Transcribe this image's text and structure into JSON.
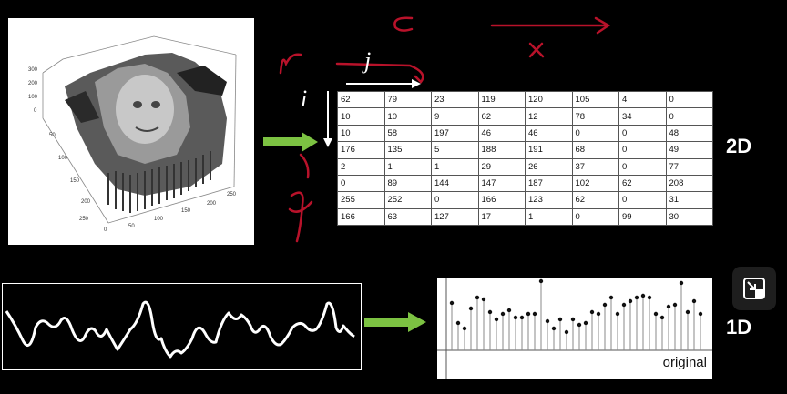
{
  "matrix": {
    "rows": [
      [
        "62",
        "79",
        "23",
        "119",
        "120",
        "105",
        "4",
        "0"
      ],
      [
        "10",
        "10",
        "9",
        "62",
        "12",
        "78",
        "34",
        "0"
      ],
      [
        "10",
        "58",
        "197",
        "46",
        "46",
        "0",
        "0",
        "48"
      ],
      [
        "176",
        "135",
        "5",
        "188",
        "191",
        "68",
        "0",
        "49"
      ],
      [
        "2",
        "1",
        "1",
        "29",
        "26",
        "37",
        "0",
        "77"
      ],
      [
        "0",
        "89",
        "144",
        "147",
        "187",
        "102",
        "62",
        "208"
      ],
      [
        "255",
        "252",
        "0",
        "166",
        "123",
        "62",
        "0",
        "31"
      ],
      [
        "166",
        "63",
        "127",
        "17",
        "1",
        "0",
        "99",
        "30"
      ]
    ]
  },
  "labels": {
    "two_d": "2D",
    "one_d": "1D",
    "stem_caption": "original",
    "index_i": "i",
    "index_j": "j"
  },
  "surface_axes": {
    "z_ticks": [
      "300",
      "200",
      "100",
      "0"
    ],
    "y_ticks": [
      "50",
      "100",
      "150",
      "200",
      "250"
    ],
    "x_ticks": [
      "0",
      "50",
      "100",
      "150",
      "200",
      "250"
    ]
  },
  "colors": {
    "arrow_green": "#7cc242",
    "annotation_red": "#b8122a",
    "background": "#000000"
  },
  "icons": {
    "fullscreen": "fullscreen-exit-icon"
  }
}
